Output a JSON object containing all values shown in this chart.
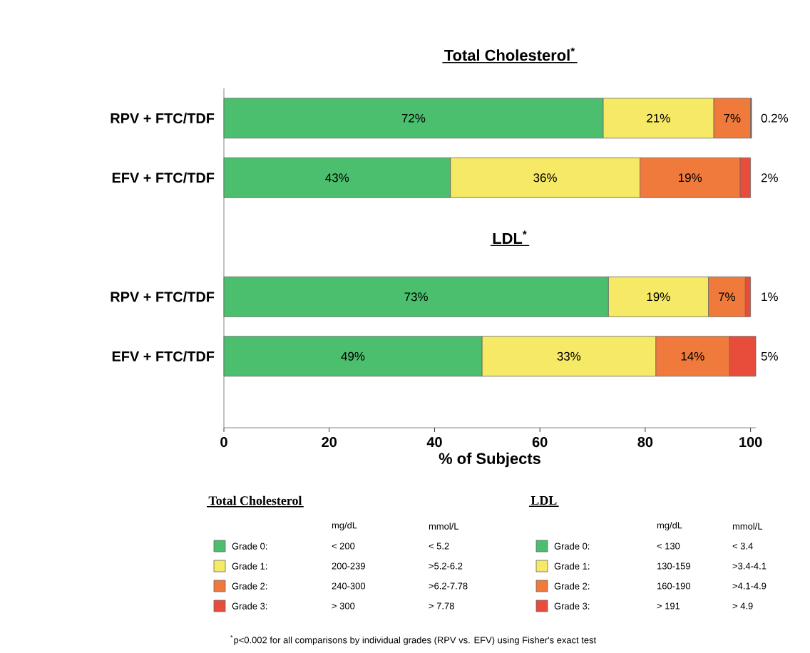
{
  "chart_data": {
    "type": "bar",
    "orientation": "horizontal",
    "stacked": true,
    "title": "Total Cholesterol$^{*}$",
    "xlabel": "% of Subjects",
    "categories": [
      "RPV + FTC/TDF",
      "EFV + FTC/TDF",
      null,
      "RPV + FTC/TDF",
      "EFV + FTC/TDF"
    ],
    "series": [
      {
        "name": "Grade 0:",
        "color": "#4cbf6e",
        "values": [
          72,
          43,
          null,
          73,
          49
        ],
        "value_labels": [
          "72%",
          "43%",
          null,
          "73%",
          "49%"
        ]
      },
      {
        "name": "Grade 1:",
        "color": "#f5e965",
        "values": [
          21,
          36,
          null,
          19,
          33
        ],
        "value_labels": [
          "21%",
          "36%",
          null,
          "19%",
          "33%"
        ]
      },
      {
        "name": "Grade 2:",
        "color": "#f07a3c",
        "values": [
          7,
          19,
          null,
          7,
          14
        ],
        "value_labels": [
          "7%",
          "19%",
          null,
          "7%",
          "14%"
        ]
      },
      {
        "name": "Grade 3:",
        "color": "#e84c3a",
        "values": [
          0.2,
          2,
          null,
          1,
          5
        ],
        "value_labels": [
          "0.2%",
          "2%",
          null,
          "1%",
          "5%"
        ]
      }
    ],
    "xlim": [
      0,
      101
    ],
    "xticks": [
      0,
      20,
      40,
      60,
      80,
      100
    ],
    "legend": "bottom",
    "annotations": [
      "LDL$^{*}$",
      "Total Cholesterol",
      "mg/dL",
      "mmol/L",
      "< 200",
      "200-239",
      "240-300",
      "> 300",
      "< 5.2",
      ">5.2-6.2",
      ">6.2-7.78",
      "> 7.78",
      "LDL",
      "mg/dL",
      "mmol/L",
      "< 130",
      "130-159",
      "160-190",
      "> 191",
      "< 3.4",
      ">3.4-4.1",
      ">4.1-4.9",
      "> 4.9",
      "$^{*}$p<0.002 for all comparisons by individual grades (RPV vs. EFV) using Fisher's exact test"
    ]
  }
}
